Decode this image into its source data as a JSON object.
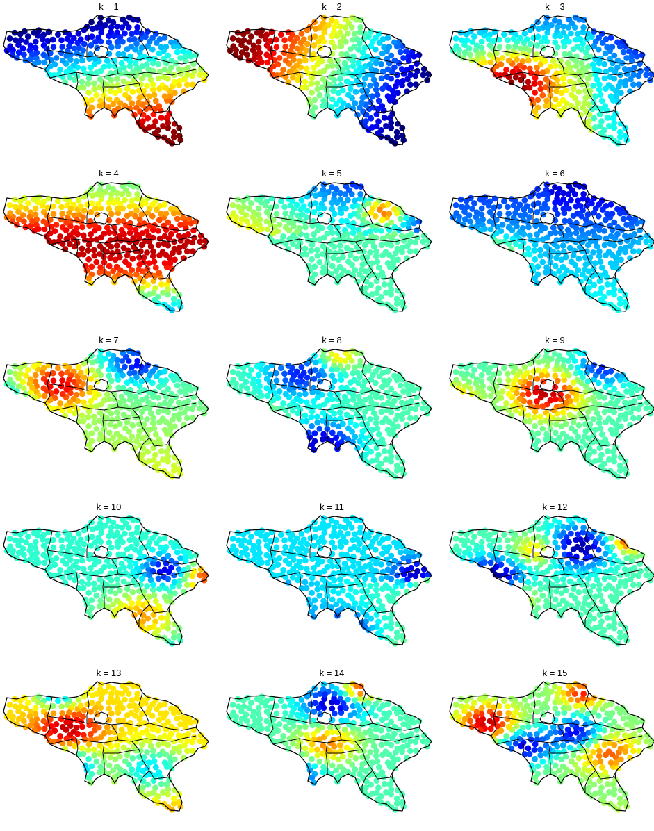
{
  "figure": {
    "panels": [
      {
        "title": "k = 1"
      },
      {
        "title": "k = 2"
      },
      {
        "title": "k = 3"
      },
      {
        "title": "k = 4"
      },
      {
        "title": "k = 5"
      },
      {
        "title": "k = 6"
      },
      {
        "title": "k = 7"
      },
      {
        "title": "k = 8"
      },
      {
        "title": "k = 9"
      },
      {
        "title": "k = 10"
      },
      {
        "title": "k = 11"
      },
      {
        "title": "k = 12"
      },
      {
        "title": "k = 13"
      },
      {
        "title": "k = 14"
      },
      {
        "title": "k = 15"
      }
    ],
    "colormap": [
      "#00008b",
      "#0000ff",
      "#0080ff",
      "#00ffff",
      "#80ff80",
      "#ffff00",
      "#ff8000",
      "#ff0000",
      "#8b0000"
    ],
    "boundary_color": "#000000",
    "background": "#ffffff"
  }
}
